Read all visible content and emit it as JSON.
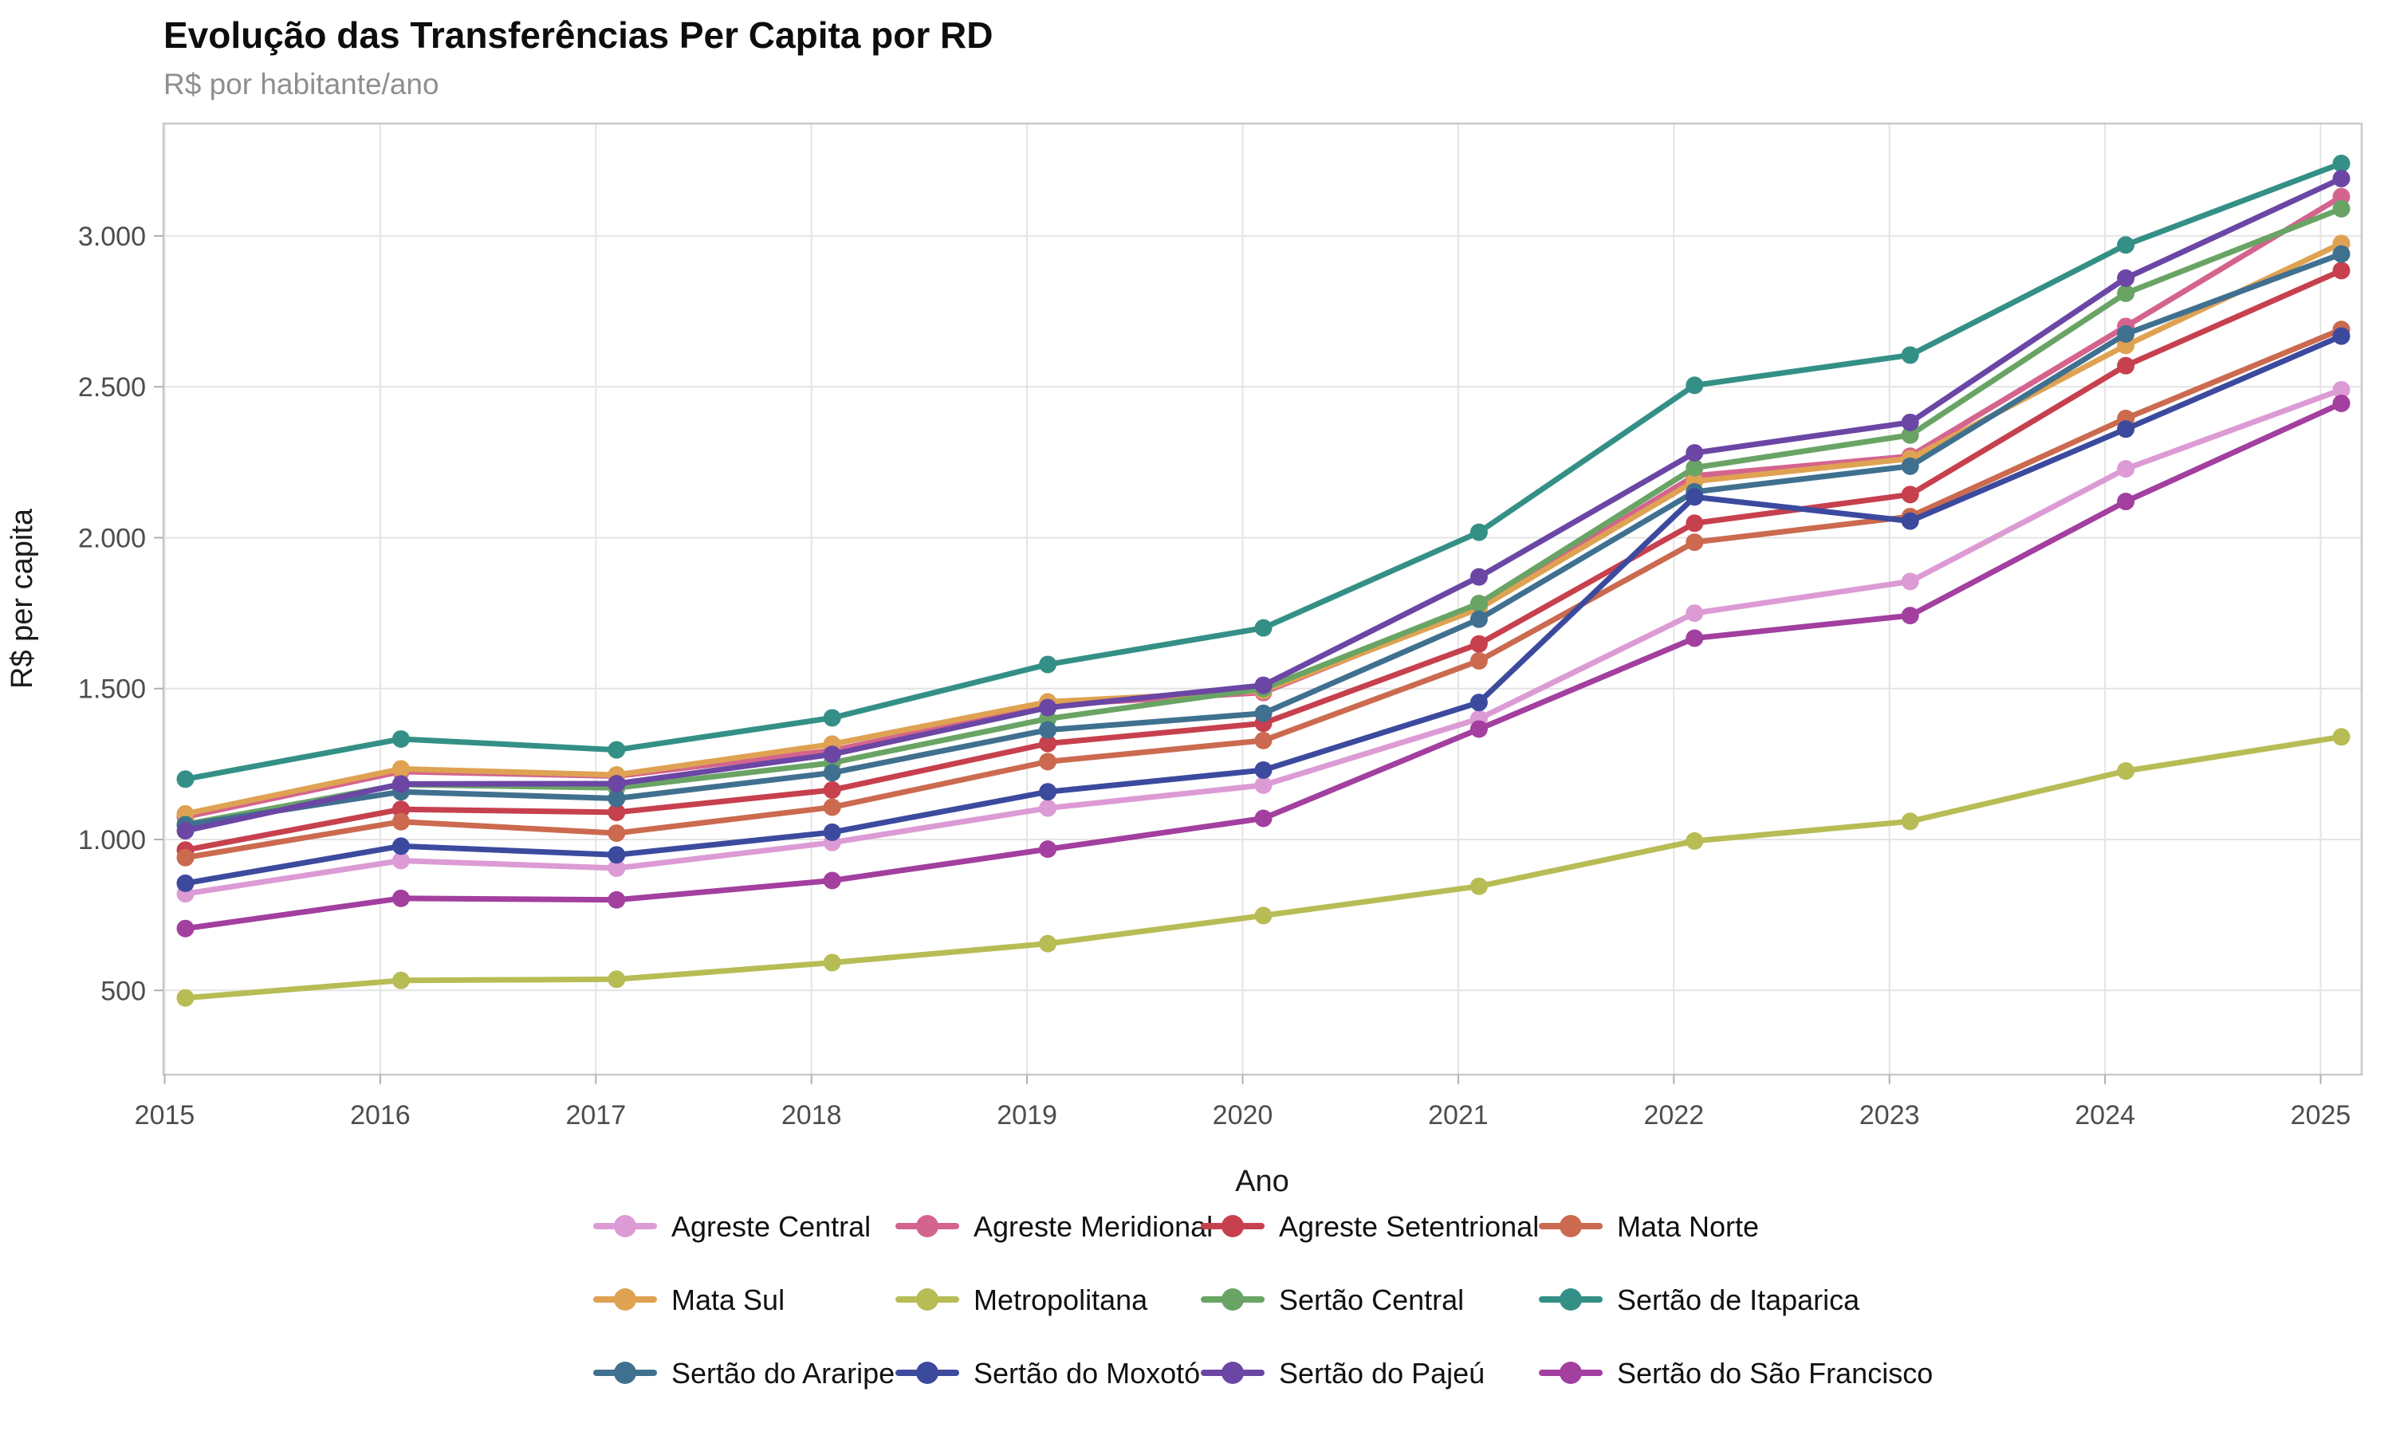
{
  "title": "Evolução das Transferências Per Capita por RD",
  "subtitle": "R$ por habitante/ano",
  "chart_data": {
    "type": "line",
    "title": "Evolução das Transferências Per Capita por RD",
    "subtitle": "R$ por habitante/ano",
    "xlabel": "Ano",
    "ylabel": "R$ per capita",
    "x": [
      2015,
      2016,
      2017,
      2018,
      2019,
      2020,
      2021,
      2022,
      2023,
      2024,
      2025
    ],
    "xtick_labels": [
      "2015",
      "2016",
      "2017",
      "2018",
      "2019",
      "2020",
      "2021",
      "2022",
      "2023",
      "2024",
      "2025"
    ],
    "yticks": [
      500,
      1000,
      1500,
      2000,
      2500,
      3000
    ],
    "ytick_labels": [
      "500",
      "1.000",
      "1.500",
      "2.000",
      "2.500",
      "3.000"
    ],
    "ylim": [
      210,
      3420
    ],
    "grid": true,
    "legend_position": "bottom",
    "marker": "circle",
    "series": [
      {
        "name": "Agreste Central",
        "color": "#DC9BD4",
        "values": [
          820,
          930,
          905,
          990,
          1104,
          1180,
          1400,
          1750,
          1855,
          2228,
          2490
        ]
      },
      {
        "name": "Agreste Meridional",
        "color": "#D4648E",
        "values": [
          1075,
          1225,
          1210,
          1295,
          1445,
          1487,
          1772,
          2205,
          2270,
          2700,
          3130
        ]
      },
      {
        "name": "Agreste Setentrional",
        "color": "#C7404E",
        "values": [
          965,
          1100,
          1090,
          1164,
          1318,
          1385,
          1648,
          2048,
          2143,
          2570,
          2885
        ]
      },
      {
        "name": "Mata Norte",
        "color": "#CB6A4F",
        "values": [
          940,
          1059,
          1021,
          1107,
          1258,
          1328,
          1592,
          1985,
          2070,
          2395,
          2690
        ]
      },
      {
        "name": "Mata Sul",
        "color": "#DFA252",
        "values": [
          1085,
          1234,
          1214,
          1316,
          1456,
          1493,
          1765,
          2187,
          2262,
          2637,
          2975
        ]
      },
      {
        "name": "Metropolitana",
        "color": "#B7BC55",
        "values": [
          475,
          533,
          537,
          592,
          655,
          748,
          845,
          995,
          1060,
          1227,
          1340
        ]
      },
      {
        "name": "Sertão Central",
        "color": "#69A465",
        "values": [
          1050,
          1182,
          1171,
          1254,
          1400,
          1500,
          1782,
          2232,
          2340,
          2810,
          3090
        ]
      },
      {
        "name": "Sertão de Itaparica",
        "color": "#349086",
        "values": [
          1200,
          1333,
          1297,
          1403,
          1580,
          1701,
          2018,
          2505,
          2605,
          2970,
          3240
        ]
      },
      {
        "name": "Sertão do Araripe",
        "color": "#40708F",
        "values": [
          1048,
          1158,
          1136,
          1221,
          1363,
          1418,
          1730,
          2152,
          2237,
          2675,
          2940
        ]
      },
      {
        "name": "Sertão do Moxotó",
        "color": "#3C4A9E",
        "values": [
          855,
          978,
          949,
          1024,
          1158,
          1230,
          1454,
          2135,
          2055,
          2360,
          2668
        ]
      },
      {
        "name": "Sertão do Pajeú",
        "color": "#6B46A5",
        "values": [
          1029,
          1184,
          1185,
          1282,
          1437,
          1511,
          1870,
          2281,
          2382,
          2860,
          3190
        ]
      },
      {
        "name": "Sertão do São Francisco",
        "color": "#A23F9F",
        "values": [
          705,
          805,
          800,
          864,
          968,
          1070,
          1366,
          1667,
          1742,
          2120,
          2445
        ]
      }
    ],
    "style": {
      "grid_color": "#e4e4e4",
      "border_color": "#c9c9c9",
      "tick_color": "#b0b0b0",
      "line_width": 7,
      "marker_radius": 11
    }
  }
}
